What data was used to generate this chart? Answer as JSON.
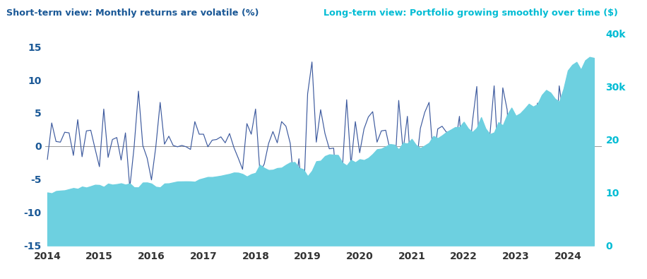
{
  "title_left": "Short-term view: Monthly returns are volatile (%)",
  "title_right": "Long-term view: Portfolio growing smoothly over time ($)",
  "title_left_color": "#1a5896",
  "title_right_color": "#00bcd4",
  "left_axis_color": "#1a5896",
  "right_axis_color": "#00bcd4",
  "area_color": "#6dd0e0",
  "line_color": "#3d5a9e",
  "background_color": "#ffffff",
  "ylim_left": [
    -15,
    17
  ],
  "ylim_right": [
    0,
    40000
  ],
  "yticks_left": [
    -15,
    -10,
    -5,
    0,
    5,
    10,
    15
  ],
  "yticks_right": [
    0,
    10000,
    20000,
    30000,
    40000
  ],
  "ytick_labels_right": [
    "0",
    "10",
    "20",
    "30k",
    "40k"
  ],
  "xlim": [
    2013.96,
    2024.65
  ],
  "xticks": [
    2014,
    2015,
    2016,
    2017,
    2018,
    2019,
    2020,
    2021,
    2022,
    2023,
    2024
  ],
  "monthly_returns": [
    -2.0,
    3.5,
    0.7,
    0.6,
    2.1,
    2.0,
    -1.4,
    4.0,
    -1.6,
    2.3,
    2.4,
    -0.4,
    -3.1,
    5.6,
    -1.7,
    1.0,
    1.3,
    -2.1,
    2.0,
    -6.3,
    -0.1,
    8.3,
    0.1,
    -1.8,
    -5.1,
    -0.1,
    6.6,
    0.3,
    1.5,
    0.1,
    -0.1,
    0.1,
    -0.1,
    -0.5,
    3.7,
    1.8,
    1.8,
    -0.1,
    0.9,
    1.0,
    1.4,
    0.5,
    1.9,
    -0.2,
    -1.8,
    -3.5,
    3.4,
    1.8,
    5.6,
    -3.9,
    -2.7,
    0.4,
    2.2,
    0.5,
    3.7,
    3.0,
    0.4,
    -6.9,
    -1.9,
    -9.2,
    7.9,
    12.7,
    0.6,
    5.5,
    1.9,
    -0.4,
    -0.3,
    -8.4,
    -3.5,
    7.0,
    -2.8,
    3.7,
    -1.0,
    2.6,
    4.4,
    5.2,
    0.6,
    2.3,
    2.4,
    -0.6,
    -4.7,
    6.9,
    -0.7,
    4.5,
    -5.3,
    -3.0,
    2.7,
    5.1,
    6.6,
    -2.0,
    2.6,
    3.0,
    2.1,
    2.2,
    0.0,
    4.5,
    -5.3,
    -3.1,
    3.7,
    9.0,
    -8.7,
    -4.9,
    1.5,
    9.1,
    -2.6,
    8.8,
    5.5,
    -5.9,
    1.9,
    3.4,
    3.7,
    -2.0,
    1.8,
    6.5,
    3.3,
    -1.7,
    -3.9,
    -2.2,
    9.1,
    4.5,
    3.2,
    1.6,
    -4.2,
    5.3,
    1.9,
    -0.5
  ],
  "portfolio_values": [
    10000,
    9850,
    10273,
    10346,
    10408,
    10626,
    10838,
    10686,
    11113,
    10934,
    11186,
    11456,
    11410,
    11054,
    11673,
    11474,
    11577,
    11727,
    11481,
    11712,
    10973,
    10962,
    11874,
    11886,
    11672,
    11074,
    10963,
    11688,
    11721,
    11897,
    12073,
    12085,
    12097,
    12085,
    12024,
    12469,
    12693,
    12922,
    12909,
    13025,
    13156,
    13340,
    13507,
    13762,
    13734,
    13487,
    13014,
    13456,
    13699,
    15223,
    14629,
    14234,
    14291,
    14606,
    14679,
    15221,
    15677,
    15740,
    14657,
    14378,
    13064,
    14095,
    15892,
    15987,
    16869,
    17189,
    17120,
    17069,
    15637,
    15087,
    16144,
    15692,
    16272,
    16110,
    16529,
    17256,
    18153,
    18262,
    18683,
    19130,
    19015,
    18121,
    19370,
    19234,
    20101,
    18934,
    18366,
    18863,
    19374,
    20653,
    20240,
    20776,
    21399,
    21848,
    22328,
    22328,
    23333,
    22090,
    21405,
    22197,
    24195,
    22092,
    21008,
    21323,
    23254,
    22651,
    24644,
    25999,
    24463,
    24927,
    25774,
    26727,
    26193,
    26664,
    28395,
    29332,
    28834,
    27710,
    27102,
    29569,
    33020,
    34076,
    34622,
    33173,
    34930,
    35564,
    35386
  ]
}
